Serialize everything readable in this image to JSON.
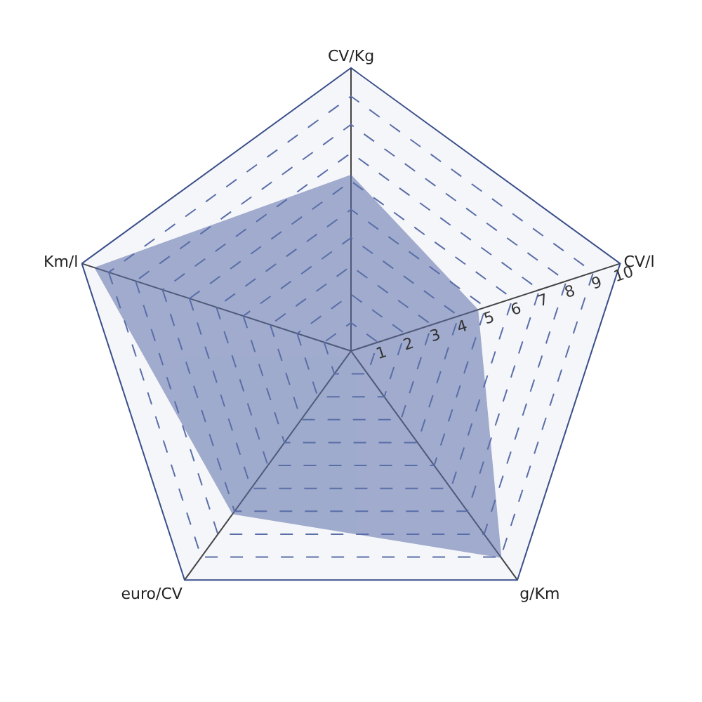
{
  "chart_data": {
    "type": "radar",
    "categories": [
      "CV/Kg",
      "CV/l",
      "g/Km",
      "euro/CV",
      "Km/l"
    ],
    "series": [
      {
        "color": "#5a6ea8",
        "values": [
          6.2,
          4.7,
          9.0,
          7.1,
          9.5
        ]
      }
    ],
    "ylim": [
      0,
      10
    ],
    "yticks": [
      1,
      2,
      3,
      4,
      5,
      6,
      7,
      8,
      9,
      10
    ],
    "grid": true
  }
}
